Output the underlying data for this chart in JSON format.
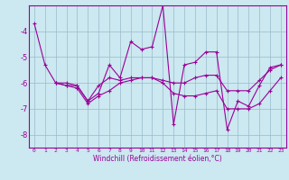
{
  "xlabel": "Windchill (Refroidissement éolien,°C)",
  "background_color": "#cce8f0",
  "grid_color": "#99bbcc",
  "line_color": "#990099",
  "series": [
    [
      0,
      -3.7
    ],
    [
      1,
      -5.3
    ],
    [
      2,
      -6.0
    ],
    [
      3,
      -6.0
    ],
    [
      4,
      -6.1
    ],
    [
      5,
      -6.7
    ],
    [
      6,
      -6.4
    ],
    [
      7,
      -5.3
    ],
    [
      8,
      -5.8
    ],
    [
      9,
      -4.4
    ],
    [
      10,
      -4.7
    ],
    [
      11,
      -4.6
    ],
    [
      12,
      -3.0
    ],
    [
      13,
      -7.6
    ],
    [
      14,
      -5.3
    ],
    [
      15,
      -5.2
    ],
    [
      16,
      -4.8
    ],
    [
      17,
      -4.8
    ],
    [
      18,
      -7.8
    ],
    [
      19,
      -6.7
    ],
    [
      20,
      -6.9
    ],
    [
      21,
      -6.1
    ],
    [
      22,
      -5.4
    ],
    [
      23,
      -5.3
    ]
  ],
  "series2": [
    [
      2,
      -6.0
    ],
    [
      3,
      -6.1
    ],
    [
      4,
      -6.1
    ],
    [
      5,
      -6.7
    ],
    [
      6,
      -6.1
    ],
    [
      7,
      -5.8
    ],
    [
      8,
      -5.9
    ],
    [
      9,
      -5.8
    ],
    [
      10,
      -5.8
    ],
    [
      11,
      -5.8
    ],
    [
      12,
      -5.9
    ],
    [
      13,
      -6.0
    ],
    [
      14,
      -6.0
    ],
    [
      15,
      -5.8
    ],
    [
      16,
      -5.7
    ],
    [
      17,
      -5.7
    ],
    [
      18,
      -6.3
    ],
    [
      19,
      -6.3
    ],
    [
      20,
      -6.3
    ],
    [
      21,
      -5.9
    ],
    [
      22,
      -5.5
    ],
    [
      23,
      -5.3
    ]
  ],
  "series3": [
    [
      2,
      -6.0
    ],
    [
      3,
      -6.1
    ],
    [
      4,
      -6.2
    ],
    [
      5,
      -6.8
    ],
    [
      6,
      -6.5
    ],
    [
      7,
      -6.3
    ],
    [
      8,
      -6.0
    ],
    [
      9,
      -5.9
    ],
    [
      10,
      -5.8
    ],
    [
      11,
      -5.8
    ],
    [
      12,
      -6.0
    ],
    [
      13,
      -6.4
    ],
    [
      14,
      -6.5
    ],
    [
      15,
      -6.5
    ],
    [
      16,
      -6.4
    ],
    [
      17,
      -6.3
    ],
    [
      18,
      -7.0
    ],
    [
      19,
      -7.0
    ],
    [
      20,
      -7.0
    ],
    [
      21,
      -6.8
    ],
    [
      22,
      -6.3
    ],
    [
      23,
      -5.8
    ]
  ],
  "ylim": [
    -8.5,
    -3.0
  ],
  "xlim": [
    -0.5,
    23.5
  ],
  "yticks": [
    -8,
    -7,
    -6,
    -5,
    -4
  ],
  "xticks": [
    0,
    1,
    2,
    3,
    4,
    5,
    6,
    7,
    8,
    9,
    10,
    11,
    12,
    13,
    14,
    15,
    16,
    17,
    18,
    19,
    20,
    21,
    22,
    23
  ],
  "xlabel_fontsize": 5.5,
  "ytick_fontsize": 6,
  "xtick_fontsize": 4.5
}
